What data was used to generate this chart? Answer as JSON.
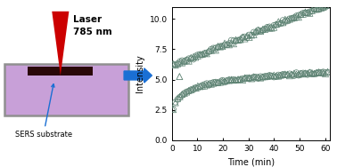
{
  "laser_text_line1": "Laser",
  "laser_text_line2": "785 nm",
  "sers_text": "SERS substrate",
  "ylabel": "Intensity",
  "xlabel": "Time (min)",
  "xlim": [
    0,
    62
  ],
  "ylim": [
    0.0,
    11.0
  ],
  "yticks": [
    0.0,
    2.5,
    5.0,
    7.5,
    10.0
  ],
  "xticks": [
    0,
    10,
    20,
    30,
    40,
    50,
    60
  ],
  "upper_line_start_y": 6.15,
  "upper_line_end_y": 11.2,
  "lower_start_y": 1.9,
  "lower_end_y": 5.6,
  "isolated_triangle_x": 3.0,
  "isolated_triangle_y": 5.25,
  "marker_color": "#5a8070",
  "marker_size": 5,
  "background_color": "#ffffff",
  "laser_beam_color": "#cc0000",
  "substrate_color": "#c8a0d8",
  "substrate_border_color": "#909090",
  "dark_bar_color": "#2a0808",
  "arrow_color": "#1a6fd4",
  "n_points": 70,
  "scatter_noise": 0.08
}
